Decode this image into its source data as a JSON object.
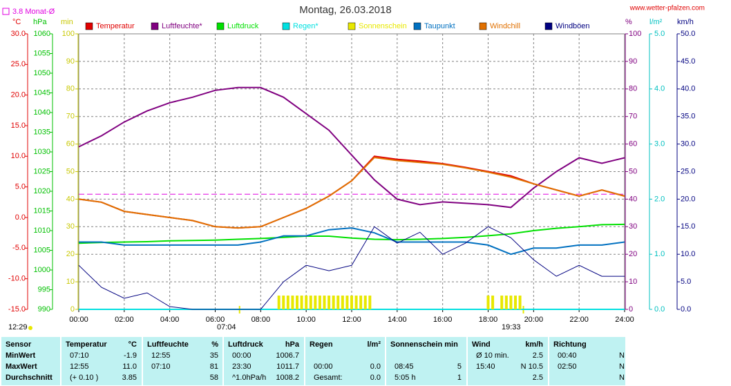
{
  "chart_data": {
    "type": "line",
    "title": "Montag, 26.03.2018",
    "source": "www.wetter-pfalzen.com",
    "reference": {
      "label": "3.8 Monat-Ø",
      "value": 3.8,
      "axis": 0,
      "color": "#e000e0"
    },
    "annotations": {
      "time": "12:29",
      "sunrise": {
        "label": "07:04",
        "value": 7.07
      },
      "sunset": {
        "label": "19:33",
        "value": 19.55
      }
    },
    "grid": true,
    "xlim": [
      0,
      24
    ],
    "xticks": [
      {
        "value": 0,
        "label": "00:00"
      },
      {
        "value": 2,
        "label": "02:00"
      },
      {
        "value": 4,
        "label": "04:00"
      },
      {
        "value": 6,
        "label": "06:00"
      },
      {
        "value": 8,
        "label": "08:00"
      },
      {
        "value": 10,
        "label": "10:00"
      },
      {
        "value": 12,
        "label": "12:00"
      },
      {
        "value": 14,
        "label": "14:00"
      },
      {
        "value": 16,
        "label": "16:00"
      },
      {
        "value": 18,
        "label": "18:00"
      },
      {
        "value": 20,
        "label": "20:00"
      },
      {
        "value": 22,
        "label": "22:00"
      },
      {
        "value": 24,
        "label": "24:00"
      }
    ],
    "axes": [
      {
        "unit": "°C",
        "color": "#e00000",
        "lim": [
          -15,
          30
        ],
        "ticks": [
          {
            "value": -15,
            "label": "-15.0"
          },
          {
            "value": -10,
            "label": "-10.0"
          },
          {
            "value": -5,
            "label": "-5.0"
          },
          {
            "value": 0,
            "label": "0.0"
          },
          {
            "value": 5,
            "label": "5.0"
          },
          {
            "value": 10,
            "label": "10.0"
          },
          {
            "value": 15,
            "label": "15.0"
          },
          {
            "value": 20,
            "label": "20.0"
          },
          {
            "value": 25,
            "label": "25.0"
          },
          {
            "value": 30,
            "label": "30.0"
          }
        ]
      },
      {
        "unit": "hPa",
        "color": "#00c000",
        "lim": [
          990,
          1060
        ],
        "ticks": [
          990,
          995,
          1000,
          1005,
          1010,
          1015,
          1020,
          1025,
          1030,
          1035,
          1040,
          1045,
          1050,
          1055,
          1060
        ]
      },
      {
        "unit": "min",
        "color": "#c8c800",
        "lim": [
          0,
          100
        ],
        "ticks": [
          0,
          10,
          20,
          30,
          40,
          50,
          60,
          70,
          80,
          90,
          100
        ],
        "grid": true
      },
      {
        "unit": "%",
        "color": "#800080",
        "lim": [
          0,
          100
        ],
        "ticks": [
          0,
          10,
          20,
          30,
          40,
          50,
          60,
          70,
          80,
          90,
          100
        ]
      },
      {
        "unit": "l/m²",
        "color": "#00c0c0",
        "lim": [
          0,
          5
        ],
        "ticks": [
          {
            "value": 0,
            "label": "0.0"
          },
          {
            "value": 1,
            "label": "1.0"
          },
          {
            "value": 2,
            "label": "2.0"
          },
          {
            "value": 3,
            "label": "3.0"
          },
          {
            "value": 4,
            "label": "4.0"
          },
          {
            "value": 5,
            "label": "5.0"
          }
        ]
      },
      {
        "unit": "km/h",
        "color": "#000080",
        "lim": [
          0,
          50
        ],
        "ticks": [
          {
            "value": 0,
            "label": "0.0"
          },
          {
            "value": 5,
            "label": "5.0"
          },
          {
            "value": 10,
            "label": "10.0"
          },
          {
            "value": 15,
            "label": "15.0"
          },
          {
            "value": 20,
            "label": "20.0"
          },
          {
            "value": 25,
            "label": "25.0"
          },
          {
            "value": 30,
            "label": "30.0"
          },
          {
            "value": 35,
            "label": "35.0"
          },
          {
            "value": 40,
            "label": "40.0"
          },
          {
            "value": 45,
            "label": "45.0"
          },
          {
            "value": 50,
            "label": "50.0"
          }
        ]
      }
    ],
    "x": [
      0,
      1,
      2,
      3,
      4,
      5,
      6,
      7,
      8,
      9,
      10,
      11,
      12,
      13,
      14,
      15,
      16,
      17,
      18,
      19,
      20,
      21,
      22,
      23,
      24
    ],
    "series": [
      {
        "name": "Temperatur",
        "color": "#e00000",
        "axis": 0,
        "values": [
          3.0,
          2.5,
          1.0,
          0.5,
          0.0,
          -0.5,
          -1.5,
          -1.7,
          -1.5,
          0.0,
          1.5,
          3.5,
          6.0,
          10.0,
          9.5,
          9.2,
          8.8,
          8.2,
          7.5,
          6.8,
          5.5,
          4.5,
          3.5,
          4.5,
          3.5
        ]
      },
      {
        "name": "Luftfeuchte*",
        "color": "#800080",
        "axis": 3,
        "values": [
          59,
          63,
          68,
          72,
          75,
          77,
          79.5,
          80.5,
          80.5,
          77,
          71,
          65,
          56,
          47,
          40,
          38,
          39,
          38.5,
          38,
          37,
          44,
          50,
          55,
          53,
          55
        ]
      },
      {
        "name": "Luftdruck",
        "color": "#00e000",
        "axis": 1,
        "values": [
          1006.8,
          1007.0,
          1007.1,
          1007.2,
          1007.4,
          1007.5,
          1007.6,
          1007.8,
          1008.0,
          1008.3,
          1008.6,
          1008.6,
          1008.1,
          1007.8,
          1007.7,
          1007.8,
          1008.0,
          1008.3,
          1008.7,
          1009.2,
          1010.0,
          1010.6,
          1011.0,
          1011.5,
          1011.6
        ]
      },
      {
        "name": "Regen*",
        "color": "#00e0e0",
        "axis": 4,
        "values": [
          0,
          0,
          0,
          0,
          0,
          0,
          0,
          0,
          0,
          0,
          0,
          0,
          0,
          0,
          0,
          0,
          0,
          0,
          0,
          0,
          0,
          0,
          0,
          0,
          0
        ]
      },
      {
        "name": "Sonnenschein",
        "color": "#e8e800",
        "axis": 2,
        "style": "bars",
        "x": [
          8.8,
          9.0,
          9.2,
          9.4,
          9.6,
          9.8,
          10.0,
          10.2,
          10.4,
          10.6,
          10.8,
          11.0,
          11.2,
          11.4,
          11.6,
          11.8,
          12.0,
          12.2,
          12.4,
          12.6,
          12.8,
          18.0,
          18.2,
          18.6,
          18.8,
          19.0,
          19.2,
          19.4
        ],
        "values": [
          5,
          5,
          5,
          5,
          5,
          5,
          5,
          5,
          5,
          5,
          5,
          5,
          5,
          5,
          5,
          5,
          5,
          5,
          5,
          5,
          5,
          5,
          5,
          5,
          5,
          5,
          5,
          5
        ]
      },
      {
        "name": "Taupunkt",
        "color": "#0070c0",
        "axis": 0,
        "values": [
          -4,
          -4,
          -4.5,
          -4.5,
          -4.5,
          -4.5,
          -4.5,
          -4.5,
          -4,
          -3,
          -3,
          -2,
          -1.7,
          -2.5,
          -4,
          -4,
          -4,
          -4,
          -4.5,
          -6,
          -5,
          -5,
          -4.5,
          -4.5,
          -4
        ]
      },
      {
        "name": "Windchill",
        "color": "#e07000",
        "axis": 0,
        "values": [
          3.0,
          2.5,
          1.0,
          0.5,
          0.0,
          -0.5,
          -1.5,
          -1.7,
          -1.5,
          0.0,
          1.5,
          3.5,
          6.0,
          9.8,
          9.3,
          9.0,
          8.7,
          8.1,
          7.4,
          6.6,
          5.5,
          4.5,
          3.5,
          4.5,
          3.5
        ]
      },
      {
        "name": "Windböen",
        "color": "#000080",
        "axis": 5,
        "values": [
          8,
          4,
          2,
          3,
          0.5,
          0,
          0,
          0,
          0,
          5,
          8,
          7,
          8,
          15,
          12,
          14,
          10,
          12,
          15,
          13,
          9,
          6,
          8,
          6,
          6
        ]
      }
    ]
  },
  "table": {
    "columns": [
      {
        "name": "Sensor"
      },
      {
        "name": "Temperatur",
        "unit": "°C"
      },
      {
        "name": "Luftfeuchte",
        "unit": "%"
      },
      {
        "name": "Luftdruck",
        "unit": "hPa"
      },
      {
        "name": "Regen",
        "unit": "l/m²"
      },
      {
        "name": "Sonnenschein min"
      },
      {
        "name": "Wind",
        "unit": "km/h"
      },
      {
        "name": "Richtung"
      }
    ],
    "rows": [
      {
        "label": "MinWert",
        "cells": [
          {
            "l": "07:10",
            "r": "-1.9"
          },
          {
            "l": "12:55",
            "r": "35"
          },
          {
            "l": "00:00",
            "r": "1006.7"
          },
          {},
          {},
          {
            "l": "Ø 10 min.",
            "r": "2.5"
          },
          {
            "l": "00:40",
            "r": "N"
          }
        ]
      },
      {
        "label": "MaxWert",
        "cells": [
          {
            "l": "12:55",
            "r": "11.0"
          },
          {
            "l": "07:10",
            "r": "81"
          },
          {
            "l": "23:30",
            "r": "1011.7"
          },
          {
            "l": "00:00",
            "r": "0.0"
          },
          {
            "l": "08:45",
            "r": "5"
          },
          {
            "l": "15:40",
            "r": "N 10.5"
          },
          {
            "l": "02:50",
            "r": "N"
          }
        ]
      },
      {
        "label": "Durchschnitt",
        "cells": [
          {
            "l": "(+ 0.10 )",
            "r": "3.85"
          },
          {
            "r": "58"
          },
          {
            "l": "^1.0hPa/h",
            "r": "1008.2"
          },
          {
            "l": "Gesamt:",
            "r": "0.0"
          },
          {
            "l": "5:05 h",
            "r": "1"
          },
          {
            "r": "2.5"
          },
          {
            "r": "N"
          }
        ]
      }
    ]
  }
}
